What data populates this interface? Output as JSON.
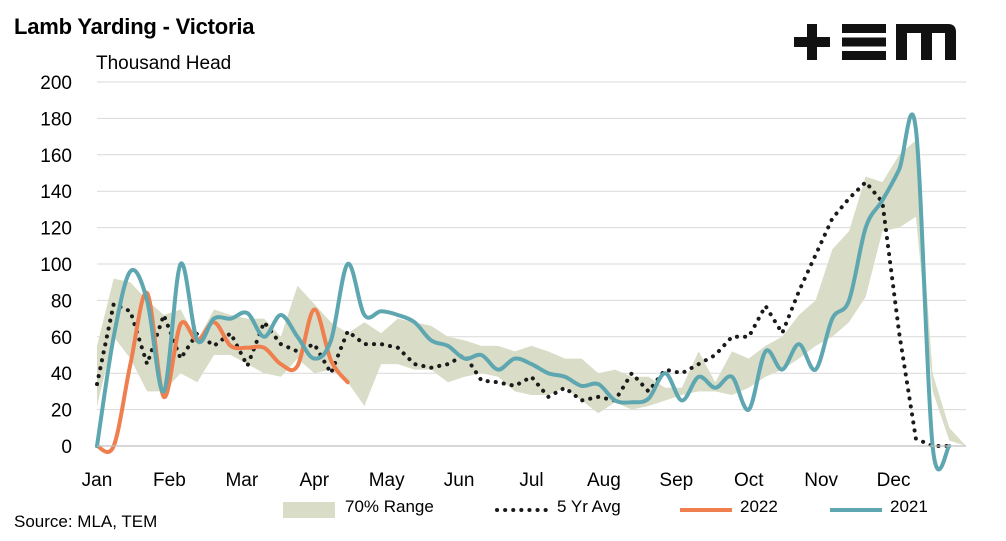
{
  "header": {
    "title": "Lamb Yarding - Victoria",
    "logo_text": "+EM",
    "logo_icon": "tem-logo-icon"
  },
  "footer": {
    "source": "Source: MLA, TEM"
  },
  "colors": {
    "range_fill": "#d9dcc6",
    "avg_dots": "#1a1a1a",
    "series_2022": "#f07f4f",
    "series_2021": "#5ea7b1",
    "grid": "#d9d9d9"
  },
  "chart_data": {
    "type": "line",
    "title": "Lamb Yarding - Victoria",
    "ylabel": "Thousand Head",
    "xlabel": "",
    "ylim": [
      0,
      200
    ],
    "yticks": [
      0,
      20,
      40,
      60,
      80,
      100,
      120,
      140,
      160,
      180,
      200
    ],
    "month_labels": [
      "Jan",
      "Feb",
      "Mar",
      "Apr",
      "May",
      "Jun",
      "Jul",
      "Aug",
      "Sep",
      "Oct",
      "Nov",
      "Dec"
    ],
    "xlim": [
      1,
      53
    ],
    "grid": true,
    "legend_position": "bottom",
    "band": {
      "name": "70% Range",
      "x": [
        1,
        2,
        3,
        4,
        5,
        6,
        7,
        8,
        9,
        10,
        11,
        12,
        13,
        14,
        15,
        16,
        17,
        18,
        19,
        20,
        21,
        22,
        23,
        24,
        25,
        26,
        27,
        28,
        29,
        30,
        31,
        32,
        33,
        34,
        35,
        36,
        37,
        38,
        39,
        40,
        41,
        42,
        43,
        44,
        45,
        46,
        47,
        48,
        49,
        50,
        51,
        52,
        53
      ],
      "upper": [
        55,
        92,
        90,
        80,
        72,
        75,
        58,
        75,
        72,
        70,
        70,
        60,
        88,
        78,
        68,
        62,
        68,
        62,
        70,
        68,
        66,
        60,
        58,
        55,
        55,
        52,
        55,
        52,
        48,
        48,
        40,
        42,
        38,
        38,
        32,
        32,
        52,
        35,
        52,
        48,
        55,
        60,
        72,
        80,
        108,
        118,
        148,
        145,
        160,
        168,
        40,
        10,
        0
      ],
      "lower": [
        22,
        60,
        48,
        30,
        30,
        40,
        35,
        50,
        50,
        45,
        40,
        38,
        48,
        40,
        42,
        35,
        22,
        45,
        45,
        42,
        42,
        35,
        38,
        40,
        38,
        30,
        28,
        28,
        32,
        25,
        18,
        24,
        20,
        22,
        25,
        28,
        30,
        30,
        28,
        32,
        38,
        42,
        48,
        55,
        60,
        68,
        82,
        118,
        120,
        126,
        30,
        3,
        0
      ]
    },
    "series": [
      {
        "name": "5 Yr Avg",
        "style": "dotted",
        "x": [
          1,
          2,
          3,
          4,
          5,
          6,
          7,
          8,
          9,
          10,
          11,
          12,
          13,
          14,
          15,
          16,
          17,
          18,
          19,
          20,
          21,
          22,
          23,
          24,
          25,
          26,
          27,
          28,
          29,
          30,
          31,
          32,
          33,
          34,
          35,
          36,
          37,
          38,
          39,
          40,
          41,
          42,
          43,
          44,
          45,
          46,
          47,
          48,
          49,
          50,
          51,
          52
        ],
        "values": [
          34,
          78,
          74,
          45,
          72,
          48,
          62,
          55,
          62,
          44,
          68,
          56,
          52,
          56,
          40,
          63,
          56,
          56,
          54,
          45,
          43,
          45,
          50,
          36,
          35,
          33,
          38,
          27,
          32,
          25,
          27,
          25,
          40,
          30,
          42,
          40,
          45,
          50,
          60,
          60,
          77,
          62,
          85,
          105,
          125,
          136,
          145,
          134,
          62,
          4,
          0,
          0
        ]
      },
      {
        "name": "2022",
        "x": [
          1,
          2,
          3,
          4,
          5,
          6,
          7,
          8,
          9,
          10,
          11,
          12,
          13,
          14,
          15,
          16
        ],
        "values": [
          0,
          0,
          45,
          84,
          27,
          67,
          58,
          68,
          55,
          54,
          54,
          45,
          44,
          75,
          47,
          35
        ]
      },
      {
        "name": "2021",
        "x": [
          1,
          2,
          3,
          4,
          5,
          6,
          7,
          8,
          9,
          10,
          11,
          12,
          13,
          14,
          15,
          16,
          17,
          18,
          19,
          20,
          21,
          22,
          23,
          24,
          25,
          26,
          27,
          28,
          29,
          30,
          31,
          32,
          33,
          34,
          35,
          36,
          37,
          38,
          39,
          40,
          41,
          42,
          43,
          44,
          45,
          46,
          47,
          48,
          49,
          50,
          51,
          52
        ],
        "values": [
          0,
          60,
          96,
          80,
          30,
          100,
          58,
          70,
          70,
          73,
          60,
          72,
          60,
          48,
          58,
          100,
          72,
          74,
          72,
          68,
          58,
          55,
          48,
          50,
          42,
          48,
          45,
          40,
          38,
          33,
          34,
          25,
          24,
          26,
          40,
          25,
          38,
          32,
          38,
          20,
          52,
          42,
          56,
          42,
          70,
          80,
          120,
          135,
          152,
          174,
          0,
          0
        ]
      }
    ]
  }
}
